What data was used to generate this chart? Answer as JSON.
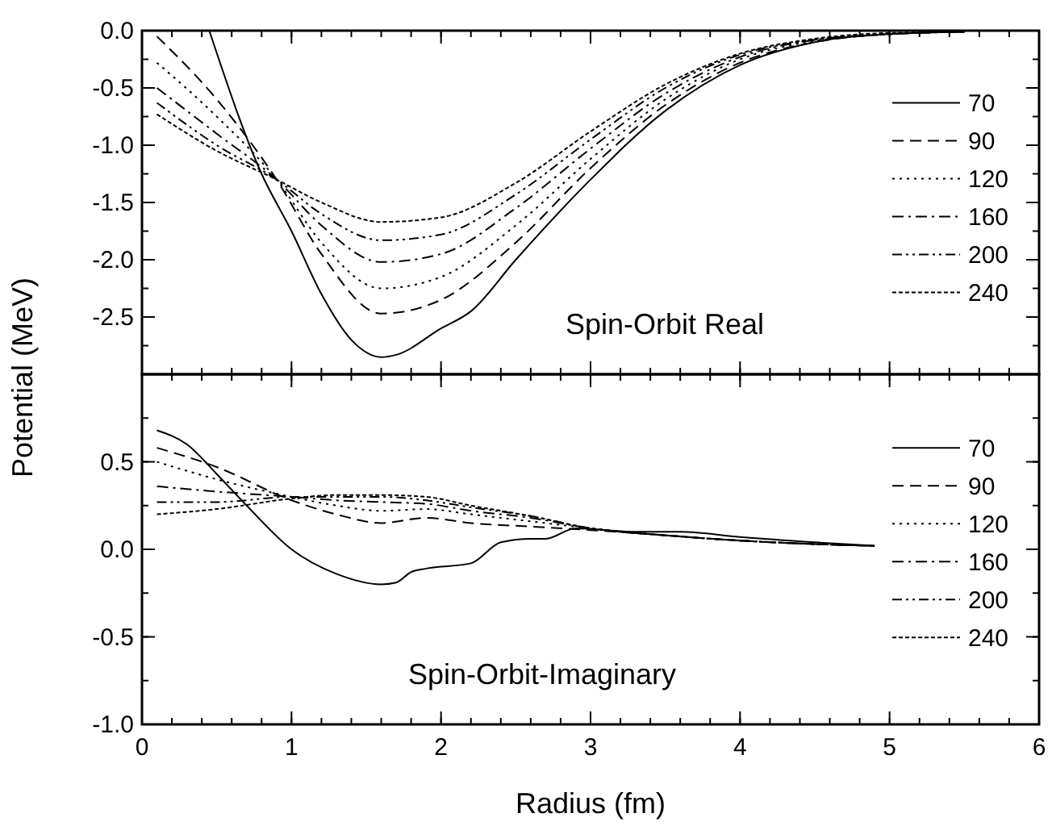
{
  "chart_data": [
    {
      "type": "line",
      "ylabel": "Potential (MeV)",
      "annotations": [
        "Spin-Orbit Real"
      ],
      "xlim": [
        0,
        6
      ],
      "xticks": [
        0,
        1,
        2,
        3,
        4,
        5,
        6
      ],
      "ylim": [
        -3,
        0
      ],
      "yticks": [
        {
          "value": 0,
          "label": "0.0"
        },
        {
          "value": -0.5,
          "label": "-0.5"
        },
        {
          "value": -1,
          "label": "-1.0"
        },
        {
          "value": -1.5,
          "label": "-1.5"
        },
        {
          "value": -2,
          "label": "-2.0"
        },
        {
          "value": -2.5,
          "label": "-2.5"
        }
      ],
      "tick_labels": "y",
      "legend": "right",
      "grid": false,
      "series": [
        {
          "name": "70",
          "color": "#000000",
          "line_style": "solid",
          "x": [
            0.45,
            0.8,
            1.0,
            1.2,
            1.4,
            1.6,
            1.7,
            2.0,
            2.2,
            2.5,
            3.0,
            3.5,
            4.0,
            4.5,
            5.0,
            5.5
          ],
          "values": [
            0,
            -1.25,
            -1.75,
            -2.3,
            -2.7,
            -2.85,
            -2.83,
            -2.6,
            -2.45,
            -2.0,
            -1.3,
            -0.7,
            -0.3,
            -0.1,
            -0.03,
            -0.01
          ]
        },
        {
          "name": "90",
          "color": "#000000",
          "line_style": "dashed",
          "x": [
            0.1,
            0.5,
            0.9,
            1.2,
            1.6,
            2.0,
            2.5,
            3.0,
            3.5,
            4.0,
            4.5,
            5.0,
            5.5
          ],
          "values": [
            -0.05,
            -0.6,
            -1.3,
            -1.95,
            -2.47,
            -2.35,
            -1.85,
            -1.2,
            -0.65,
            -0.28,
            -0.1,
            -0.03,
            -0.01
          ]
        },
        {
          "name": "120",
          "color": "#000000",
          "line_style": "dotted",
          "x": [
            0.1,
            0.5,
            0.9,
            1.2,
            1.6,
            2.0,
            2.5,
            3.0,
            3.5,
            4.0,
            4.5,
            5.0,
            5.5
          ],
          "values": [
            -0.28,
            -0.75,
            -1.3,
            -1.85,
            -2.25,
            -2.15,
            -1.7,
            -1.12,
            -0.6,
            -0.25,
            -0.09,
            -0.03,
            -0.01
          ]
        },
        {
          "name": "160",
          "color": "#000000",
          "line_style": "dashdot",
          "x": [
            0.1,
            0.5,
            0.9,
            1.2,
            1.6,
            2.0,
            2.5,
            3.0,
            3.5,
            4.0,
            4.5,
            5.0,
            5.5
          ],
          "values": [
            -0.5,
            -0.9,
            -1.3,
            -1.7,
            -2.02,
            -1.95,
            -1.55,
            -1.03,
            -0.55,
            -0.23,
            -0.08,
            -0.03,
            -0.01
          ]
        },
        {
          "name": "200",
          "color": "#000000",
          "line_style": "dashdotdot",
          "x": [
            0.1,
            0.5,
            0.9,
            1.2,
            1.6,
            2.0,
            2.5,
            3.0,
            3.5,
            4.0,
            4.5,
            5.0,
            5.5
          ],
          "values": [
            -0.63,
            -1.0,
            -1.3,
            -1.6,
            -1.83,
            -1.78,
            -1.43,
            -0.95,
            -0.5,
            -0.21,
            -0.08,
            -0.03,
            -0.01
          ]
        },
        {
          "name": "240",
          "color": "#000000",
          "line_style": "shortdash",
          "x": [
            0.1,
            0.5,
            0.9,
            1.2,
            1.6,
            2.0,
            2.5,
            3.0,
            3.5,
            4.0,
            4.5,
            5.0,
            5.5
          ],
          "values": [
            -0.73,
            -1.05,
            -1.3,
            -1.5,
            -1.67,
            -1.63,
            -1.33,
            -0.88,
            -0.47,
            -0.2,
            -0.07,
            -0.02,
            -0.01
          ]
        }
      ]
    },
    {
      "type": "line",
      "xlabel": "Radius (fm)",
      "annotations": [
        "Spin-Orbit-Imaginary"
      ],
      "xlim": [
        0,
        6
      ],
      "xticks": [
        0,
        1,
        2,
        3,
        4,
        5,
        6
      ],
      "ylim": [
        -1,
        1
      ],
      "yticks": [
        {
          "value": -1,
          "label": "-1.0"
        },
        {
          "value": -0.5,
          "label": "-0.5"
        },
        {
          "value": 0,
          "label": "0.0"
        },
        {
          "value": 0.5,
          "label": "0.5"
        }
      ],
      "legend": "right",
      "grid": false,
      "series": [
        {
          "name": "70",
          "color": "#000000",
          "line_style": "solid",
          "x": [
            0.1,
            0.3,
            0.5,
            0.7,
            1.0,
            1.3,
            1.6,
            1.7,
            1.8,
            1.9,
            2.2,
            2.4,
            2.6,
            2.7,
            2.9,
            3.3,
            3.6,
            4.0,
            4.5,
            4.9
          ],
          "values": [
            0.68,
            0.6,
            0.43,
            0.25,
            0.0,
            -0.14,
            -0.2,
            -0.19,
            -0.13,
            -0.11,
            -0.08,
            0.04,
            0.06,
            0.06,
            0.12,
            0.1,
            0.1,
            0.07,
            0.04,
            0.02
          ]
        },
        {
          "name": "90",
          "color": "#000000",
          "line_style": "dashed",
          "x": [
            0.1,
            0.5,
            1.0,
            1.3,
            1.6,
            1.9,
            2.2,
            2.6,
            3.0,
            3.5,
            4.0,
            4.5,
            4.9
          ],
          "values": [
            0.58,
            0.47,
            0.28,
            0.2,
            0.15,
            0.18,
            0.15,
            0.13,
            0.11,
            0.08,
            0.05,
            0.03,
            0.02
          ]
        },
        {
          "name": "120",
          "color": "#000000",
          "line_style": "dotted",
          "x": [
            0.1,
            0.5,
            1.0,
            1.3,
            1.6,
            1.9,
            2.2,
            2.6,
            3.0,
            3.5,
            4.0,
            4.5,
            4.9
          ],
          "values": [
            0.5,
            0.4,
            0.3,
            0.25,
            0.22,
            0.23,
            0.2,
            0.16,
            0.12,
            0.08,
            0.05,
            0.03,
            0.02
          ]
        },
        {
          "name": "160",
          "color": "#000000",
          "line_style": "dashdot",
          "x": [
            0.1,
            0.5,
            1.0,
            1.3,
            1.6,
            1.9,
            2.2,
            2.6,
            3.0,
            3.5,
            4.0,
            4.5,
            4.9
          ],
          "values": [
            0.36,
            0.33,
            0.3,
            0.28,
            0.27,
            0.26,
            0.22,
            0.18,
            0.12,
            0.08,
            0.05,
            0.03,
            0.02
          ]
        },
        {
          "name": "200",
          "color": "#000000",
          "line_style": "dashdotdot",
          "x": [
            0.1,
            0.5,
            1.0,
            1.3,
            1.6,
            1.9,
            2.2,
            2.6,
            3.0,
            3.5,
            4.0,
            4.5,
            4.9
          ],
          "values": [
            0.27,
            0.27,
            0.3,
            0.3,
            0.3,
            0.28,
            0.24,
            0.19,
            0.12,
            0.08,
            0.05,
            0.03,
            0.02
          ]
        },
        {
          "name": "240",
          "color": "#000000",
          "line_style": "shortdash",
          "x": [
            0.1,
            0.5,
            1.0,
            1.3,
            1.6,
            1.9,
            2.2,
            2.6,
            3.0,
            3.5,
            4.0,
            4.5,
            4.9
          ],
          "values": [
            0.2,
            0.23,
            0.29,
            0.31,
            0.31,
            0.3,
            0.25,
            0.19,
            0.12,
            0.08,
            0.05,
            0.03,
            0.02
          ]
        }
      ]
    }
  ]
}
